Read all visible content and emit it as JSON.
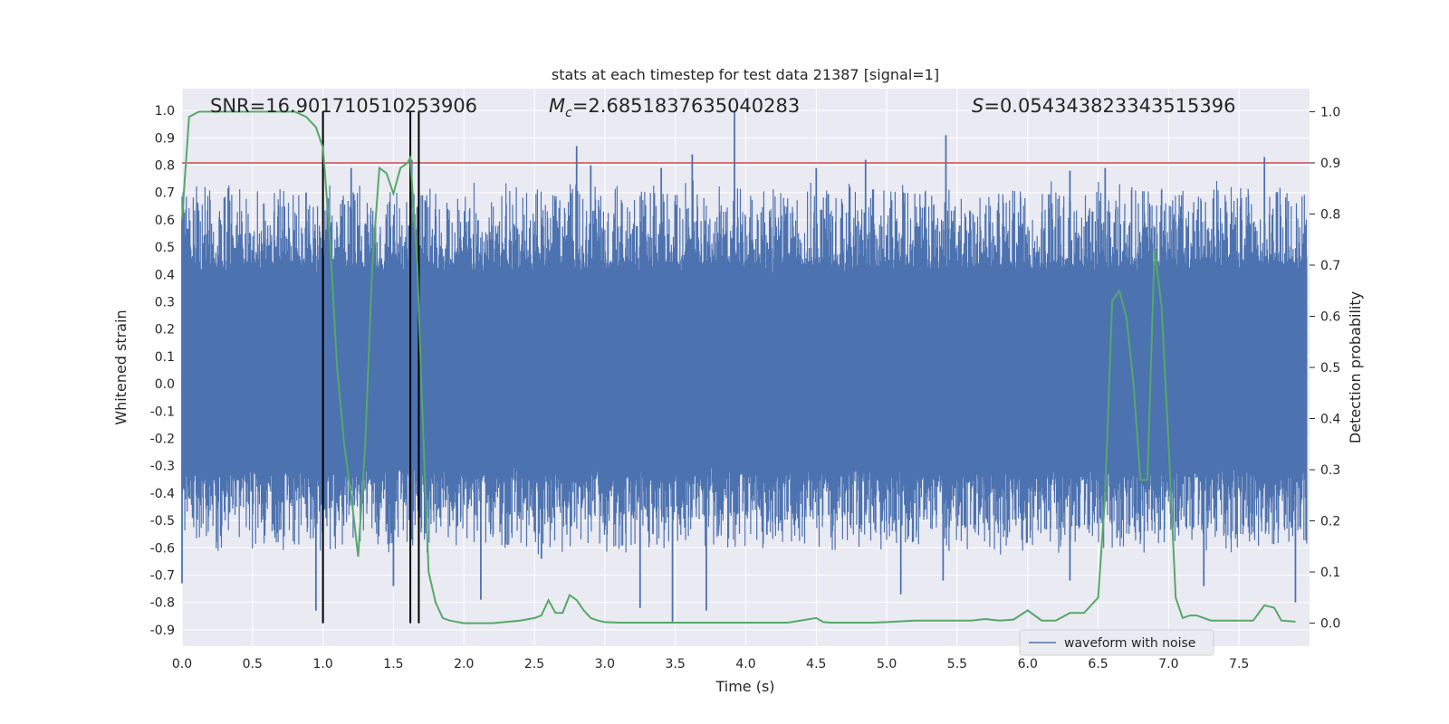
{
  "chart_data": {
    "type": "line",
    "title": "stats at each timestep for test data 21387 [signal=1]",
    "xlabel": "Time (s)",
    "ylabel_left": "Whitened strain",
    "ylabel_right": "Detection probability",
    "xlim": [
      0.0,
      8.0
    ],
    "ylim_left": [
      -0.96,
      1.08
    ],
    "ylim_right": [
      -0.045,
      1.045
    ],
    "x_ticks": [
      "0.0",
      "0.5",
      "1.0",
      "1.5",
      "2.0",
      "2.5",
      "3.0",
      "3.5",
      "4.0",
      "4.5",
      "5.0",
      "5.5",
      "6.0",
      "6.5",
      "7.0",
      "7.5"
    ],
    "y_ticks_left": [
      "1.0",
      "0.9",
      "0.8",
      "0.7",
      "0.6",
      "0.5",
      "0.4",
      "0.3",
      "0.2",
      "0.1",
      "0.0",
      "-0.1",
      "-0.2",
      "-0.3",
      "-0.4",
      "-0.5",
      "-0.6",
      "-0.7",
      "-0.8",
      "-0.9"
    ],
    "y_ticks_right": [
      "1.0",
      "0.9",
      "0.8",
      "0.7",
      "0.6",
      "0.5",
      "0.4",
      "0.3",
      "0.2",
      "0.1",
      "0.0"
    ],
    "grid": true,
    "legend_position": "bottom-right",
    "annotations": {
      "snr": "SNR=16.901710510253906",
      "mc_symbol": "M",
      "mc_sub": "c",
      "mc_value": "=2.6851837635040283",
      "s_symbol": "S",
      "s_value": "=0.054343823343515396"
    },
    "series": [
      {
        "name": "waveform with noise",
        "axis": "left",
        "color": "#4c72b0",
        "envelope_top": 0.45,
        "envelope_bottom": -0.35,
        "spikes_up": [
          [
            0.0,
            0.6
          ],
          [
            0.3,
            0.68
          ],
          [
            0.58,
            0.66
          ],
          [
            0.88,
            0.7
          ],
          [
            1.2,
            0.79
          ],
          [
            1.63,
            0.82
          ],
          [
            2.8,
            0.87
          ],
          [
            2.9,
            0.8
          ],
          [
            3.4,
            0.79
          ],
          [
            3.62,
            0.84
          ],
          [
            3.92,
            1.0
          ],
          [
            4.5,
            0.79
          ],
          [
            4.85,
            0.82
          ],
          [
            5.42,
            0.91
          ],
          [
            6.3,
            0.78
          ],
          [
            6.55,
            0.79
          ],
          [
            7.68,
            0.83
          ]
        ],
        "spikes_down": [
          [
            0.0,
            -0.73
          ],
          [
            0.95,
            -0.83
          ],
          [
            1.0,
            -0.61
          ],
          [
            1.5,
            -0.74
          ],
          [
            1.63,
            -0.57
          ],
          [
            2.12,
            -0.79
          ],
          [
            2.55,
            -0.64
          ],
          [
            3.25,
            -0.82
          ],
          [
            3.48,
            -0.87
          ],
          [
            3.72,
            -0.83
          ],
          [
            5.1,
            -0.77
          ],
          [
            5.4,
            -0.72
          ],
          [
            6.3,
            -0.72
          ],
          [
            7.25,
            -0.74
          ],
          [
            7.9,
            -0.8
          ]
        ]
      },
      {
        "name": "",
        "axis": "right",
        "color": "#55a868",
        "x": [
          0.0,
          0.05,
          0.12,
          0.3,
          0.6,
          0.8,
          0.88,
          0.95,
          1.0,
          1.05,
          1.1,
          1.15,
          1.2,
          1.25,
          1.3,
          1.35,
          1.4,
          1.45,
          1.5,
          1.55,
          1.6,
          1.62,
          1.67,
          1.7,
          1.75,
          1.8,
          1.85,
          1.9,
          2.0,
          2.2,
          2.4,
          2.5,
          2.55,
          2.6,
          2.65,
          2.7,
          2.75,
          2.8,
          2.85,
          2.9,
          2.95,
          3.0,
          3.1,
          3.3,
          3.5,
          3.7,
          3.9,
          4.1,
          4.3,
          4.5,
          4.55,
          4.6,
          4.7,
          4.9,
          5.0,
          5.2,
          5.4,
          5.6,
          5.7,
          5.8,
          5.9,
          6.0,
          6.05,
          6.1,
          6.2,
          6.3,
          6.4,
          6.5,
          6.55,
          6.6,
          6.65,
          6.7,
          6.75,
          6.8,
          6.85,
          6.9,
          6.95,
          7.0,
          7.05,
          7.1,
          7.15,
          7.2,
          7.3,
          7.5,
          7.6,
          7.68,
          7.75,
          7.8,
          7.9
        ],
        "y": [
          0.79,
          0.99,
          1.0,
          1.0,
          1.0,
          1.0,
          0.99,
          0.97,
          0.93,
          0.75,
          0.5,
          0.35,
          0.25,
          0.13,
          0.35,
          0.7,
          0.89,
          0.88,
          0.84,
          0.89,
          0.9,
          0.91,
          0.7,
          0.45,
          0.1,
          0.04,
          0.01,
          0.005,
          0.0,
          0.0,
          0.005,
          0.01,
          0.015,
          0.045,
          0.02,
          0.02,
          0.055,
          0.045,
          0.025,
          0.01,
          0.005,
          0.002,
          0.001,
          0.001,
          0.001,
          0.001,
          0.001,
          0.001,
          0.001,
          0.01,
          0.002,
          0.001,
          0.001,
          0.001,
          0.002,
          0.005,
          0.005,
          0.005,
          0.008,
          0.005,
          0.007,
          0.025,
          0.015,
          0.005,
          0.005,
          0.02,
          0.02,
          0.05,
          0.25,
          0.63,
          0.65,
          0.6,
          0.47,
          0.28,
          0.28,
          0.73,
          0.62,
          0.35,
          0.05,
          0.01,
          0.015,
          0.015,
          0.005,
          0.005,
          0.005,
          0.035,
          0.03,
          0.005,
          0.003
        ]
      }
    ],
    "hlines": [
      {
        "axis": "right",
        "y": 0.9,
        "color": "#c44e52"
      }
    ],
    "vlines": [
      {
        "x": 1.0,
        "color": "#000000"
      },
      {
        "x": 1.62,
        "color": "#000000"
      },
      {
        "x": 1.68,
        "color": "#000000"
      }
    ]
  }
}
